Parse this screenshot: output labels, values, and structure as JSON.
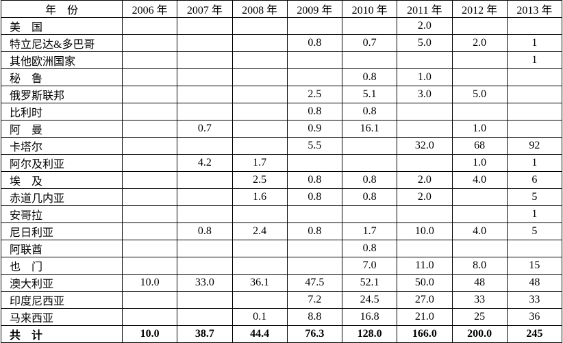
{
  "table": {
    "header": [
      "年　份",
      "2006 年",
      "2007 年",
      "2008 年",
      "2009 年",
      "2010 年",
      "2011 年",
      "2012 年",
      "2013 年"
    ],
    "rows": [
      [
        "美　国",
        null,
        null,
        null,
        null,
        null,
        "2.0",
        null,
        null
      ],
      [
        "特立尼达&多巴哥",
        null,
        null,
        null,
        "0.8",
        "0.7",
        "5.0",
        "2.0",
        "1"
      ],
      [
        "其他欧洲国家",
        null,
        null,
        null,
        null,
        null,
        null,
        null,
        "1"
      ],
      [
        "秘　鲁",
        null,
        null,
        null,
        null,
        "0.8",
        "1.0",
        null,
        null
      ],
      [
        "俄罗斯联邦",
        null,
        null,
        null,
        "2.5",
        "5.1",
        "3.0",
        "5.0",
        null
      ],
      [
        "比利时",
        null,
        null,
        null,
        "0.8",
        "0.8",
        null,
        null,
        null
      ],
      [
        "阿　曼",
        null,
        "0.7",
        null,
        "0.9",
        "16.1",
        null,
        "1.0",
        null
      ],
      [
        "卡塔尔",
        null,
        null,
        null,
        "5.5",
        null,
        "32.0",
        "68",
        "92"
      ],
      [
        "阿尔及利亚",
        null,
        "4.2",
        "1.7",
        null,
        null,
        null,
        "1.0",
        "1"
      ],
      [
        "埃　及",
        null,
        null,
        "2.5",
        "0.8",
        "0.8",
        "2.0",
        "4.0",
        "6"
      ],
      [
        "赤道几内亚",
        null,
        null,
        "1.6",
        "0.8",
        "0.8",
        "2.0",
        null,
        "5"
      ],
      [
        "安哥拉",
        null,
        null,
        null,
        null,
        null,
        null,
        null,
        "1"
      ],
      [
        "尼日利亚",
        null,
        "0.8",
        "2.4",
        "0.8",
        "1.7",
        "10.0",
        "4.0",
        "5"
      ],
      [
        "阿联酋",
        null,
        null,
        null,
        null,
        "0.8",
        null,
        null,
        null
      ],
      [
        "也　门",
        null,
        null,
        null,
        null,
        "7.0",
        "11.0",
        "8.0",
        "15"
      ],
      [
        "澳大利亚",
        "10.0",
        "33.0",
        "36.1",
        "47.5",
        "52.1",
        "50.0",
        "48",
        "48"
      ],
      [
        "印度尼西亚",
        null,
        null,
        null,
        "7.2",
        "24.5",
        "27.0",
        "33",
        "33"
      ],
      [
        "马来西亚",
        null,
        null,
        "0.1",
        "8.8",
        "16.8",
        "21.0",
        "25",
        "36"
      ]
    ],
    "total": [
      "共　计",
      "10.0",
      "38.7",
      "44.4",
      "76.3",
      "128.0",
      "166.0",
      "200.0",
      "245"
    ]
  }
}
